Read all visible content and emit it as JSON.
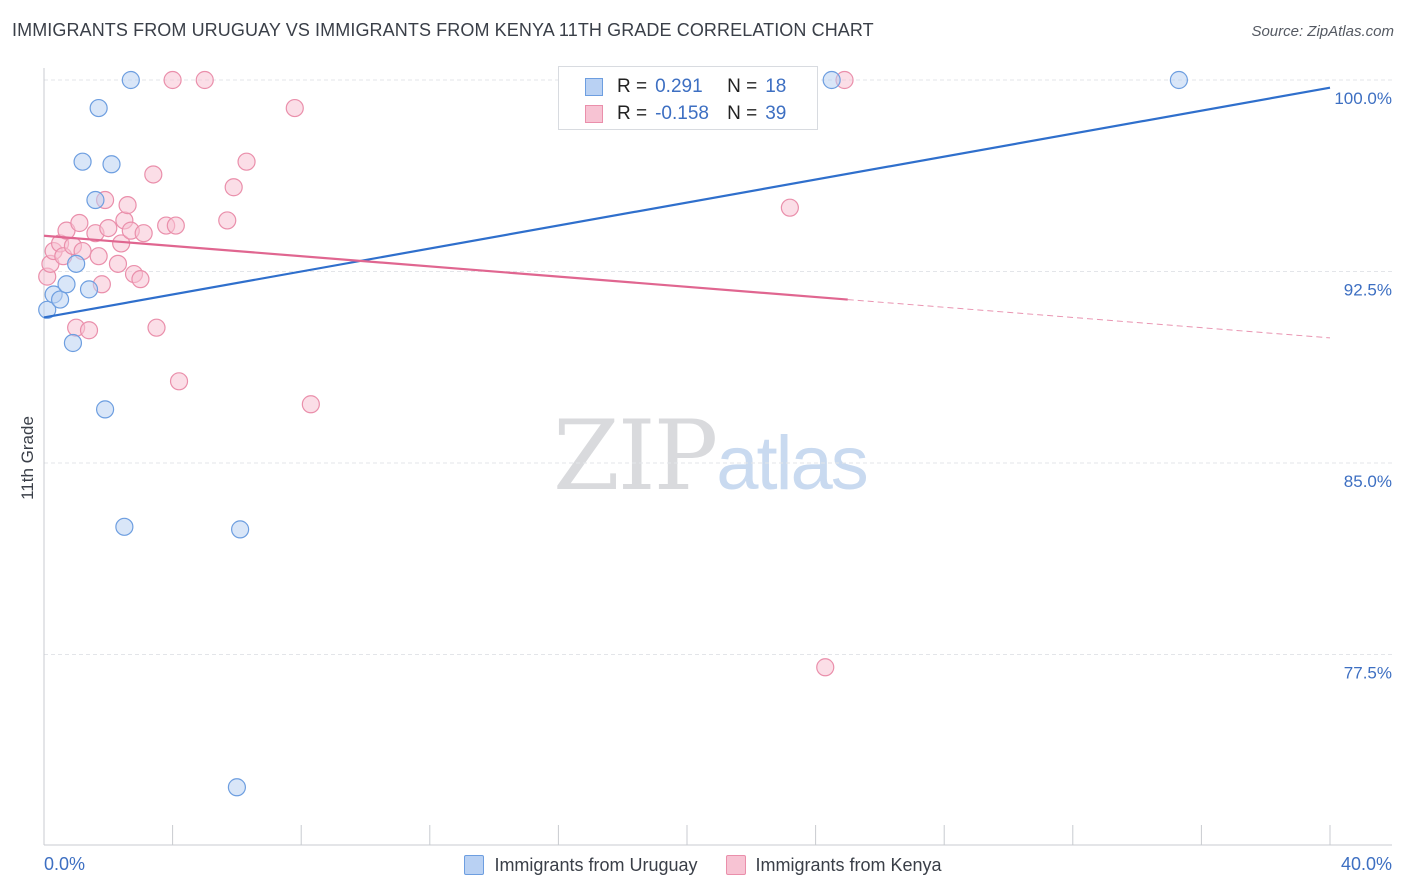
{
  "header": {
    "title": "IMMIGRANTS FROM URUGUAY VS IMMIGRANTS FROM KENYA 11TH GRADE CORRELATION CHART",
    "source": "Source: ZipAtlas.com"
  },
  "watermark": {
    "zip": "ZIP",
    "atlas": "atlas"
  },
  "colors": {
    "uruguay_fill": "#b9d1f3",
    "uruguay_stroke": "#6d9ee0",
    "uruguay_line": "#2f6fcc",
    "kenya_fill": "#f7c3d3",
    "kenya_stroke": "#ea8fab",
    "kenya_line": "#e06690",
    "tick_label": "#3d6fc2",
    "grid": "#e3e5e9"
  },
  "legend_box": {
    "rows": [
      {
        "r_label": "R =",
        "r_value": "0.291",
        "n_label": "N =",
        "n_value": "18"
      },
      {
        "r_label": "R =",
        "r_value": "-0.158",
        "n_label": "N =",
        "n_value": "39"
      }
    ]
  },
  "chart_data": {
    "type": "scatter",
    "title": "IMMIGRANTS FROM URUGUAY VS IMMIGRANTS FROM KENYA 11TH GRADE CORRELATION CHART",
    "xlabel": "",
    "ylabel": "11th Grade",
    "xlim": [
      0,
      40
    ],
    "ylim": [
      70.0,
      101.5
    ],
    "x_tick_labels": [
      "0.0%",
      "40.0%"
    ],
    "y_ticks": [
      77.5,
      85.0,
      92.5,
      100.0
    ],
    "y_tick_labels": [
      "77.5%",
      "85.0%",
      "92.5%",
      "100.0%"
    ],
    "grid": true,
    "legend_position": "bottom",
    "series": [
      {
        "name": "Immigrants from Uruguay",
        "R": 0.291,
        "N": 18,
        "points": [
          [
            0.1,
            91.0
          ],
          [
            0.3,
            91.6
          ],
          [
            0.5,
            91.4
          ],
          [
            0.7,
            92.0
          ],
          [
            0.9,
            89.7
          ],
          [
            1.0,
            92.8
          ],
          [
            1.2,
            96.8
          ],
          [
            1.4,
            91.8
          ],
          [
            1.6,
            95.3
          ],
          [
            1.7,
            98.9
          ],
          [
            1.9,
            87.1
          ],
          [
            2.1,
            96.7
          ],
          [
            2.5,
            82.5
          ],
          [
            2.7,
            100.0
          ],
          [
            6.0,
            72.3
          ],
          [
            6.1,
            82.4
          ],
          [
            24.5,
            100.0
          ],
          [
            35.3,
            100.0
          ]
        ],
        "trend": {
          "x": [
            0,
            40
          ],
          "y": [
            90.7,
            99.7
          ],
          "dashed_from": null
        }
      },
      {
        "name": "Immigrants from Kenya",
        "R": -0.158,
        "N": 39,
        "points": [
          [
            0.1,
            92.3
          ],
          [
            0.2,
            92.8
          ],
          [
            0.3,
            93.3
          ],
          [
            0.5,
            93.6
          ],
          [
            0.6,
            93.1
          ],
          [
            0.7,
            94.1
          ],
          [
            0.9,
            93.5
          ],
          [
            1.0,
            90.3
          ],
          [
            1.1,
            94.4
          ],
          [
            1.2,
            93.3
          ],
          [
            1.4,
            90.2
          ],
          [
            1.6,
            94.0
          ],
          [
            1.7,
            93.1
          ],
          [
            1.8,
            92.0
          ],
          [
            1.9,
            95.3
          ],
          [
            2.0,
            94.2
          ],
          [
            2.3,
            92.8
          ],
          [
            2.4,
            93.6
          ],
          [
            2.5,
            94.5
          ],
          [
            2.6,
            95.1
          ],
          [
            2.7,
            94.1
          ],
          [
            2.8,
            92.4
          ],
          [
            3.0,
            92.2
          ],
          [
            3.1,
            94.0
          ],
          [
            3.4,
            96.3
          ],
          [
            3.5,
            90.3
          ],
          [
            3.8,
            94.3
          ],
          [
            4.0,
            100.0
          ],
          [
            4.1,
            94.3
          ],
          [
            4.2,
            88.2
          ],
          [
            5.0,
            100.0
          ],
          [
            5.7,
            94.5
          ],
          [
            5.9,
            95.8
          ],
          [
            6.3,
            96.8
          ],
          [
            7.8,
            98.9
          ],
          [
            8.3,
            87.3
          ],
          [
            23.2,
            95.0
          ],
          [
            24.9,
            100.0
          ],
          [
            24.3,
            77.0
          ]
        ],
        "trend": {
          "x": [
            0,
            40
          ],
          "y": [
            93.9,
            89.9
          ],
          "dashed_from": 25
        }
      }
    ]
  }
}
